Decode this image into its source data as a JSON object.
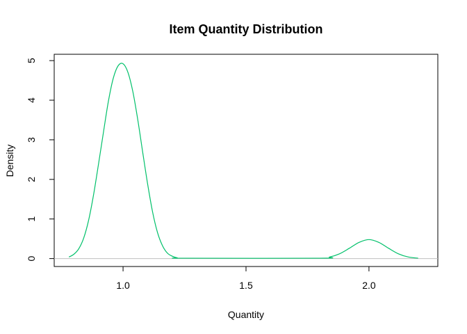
{
  "chart_data": {
    "type": "line",
    "title": "Item Quantity Distribution",
    "xlabel": "Quantity",
    "ylabel": "Density",
    "xlim": [
      0.72,
      2.28
    ],
    "ylim": [
      -0.2,
      5.16
    ],
    "xticks": [
      1.0,
      1.5,
      2.0
    ],
    "xtick_labels": [
      "1.0",
      "1.5",
      "2.0"
    ],
    "yticks": [
      0,
      1,
      2,
      3,
      4,
      5
    ],
    "ytick_labels": [
      "0",
      "1",
      "2",
      "3",
      "4",
      "5"
    ],
    "grid": false,
    "baseline": 0,
    "series": [
      {
        "color": "#00c06a",
        "x": [
          0.78,
          0.8,
          0.82,
          0.84,
          0.86,
          0.88,
          0.9,
          0.92,
          0.94,
          0.96,
          0.98,
          1.0,
          1.02,
          1.04,
          1.06,
          1.08,
          1.1,
          1.12,
          1.14,
          1.16,
          1.18,
          1.2,
          1.22,
          1.25,
          1.8,
          1.84,
          1.88,
          1.92,
          1.96,
          2.0,
          2.04,
          2.08,
          2.12,
          2.16,
          2.2
        ],
        "y": [
          0.04,
          0.11,
          0.25,
          0.52,
          0.97,
          1.61,
          2.38,
          3.18,
          3.96,
          4.55,
          4.87,
          4.92,
          4.7,
          4.21,
          3.5,
          2.68,
          1.88,
          1.18,
          0.66,
          0.33,
          0.14,
          0.06,
          0.02,
          0.01,
          0.01,
          0.04,
          0.12,
          0.26,
          0.41,
          0.48,
          0.41,
          0.26,
          0.12,
          0.04,
          0.01
        ]
      }
    ]
  }
}
